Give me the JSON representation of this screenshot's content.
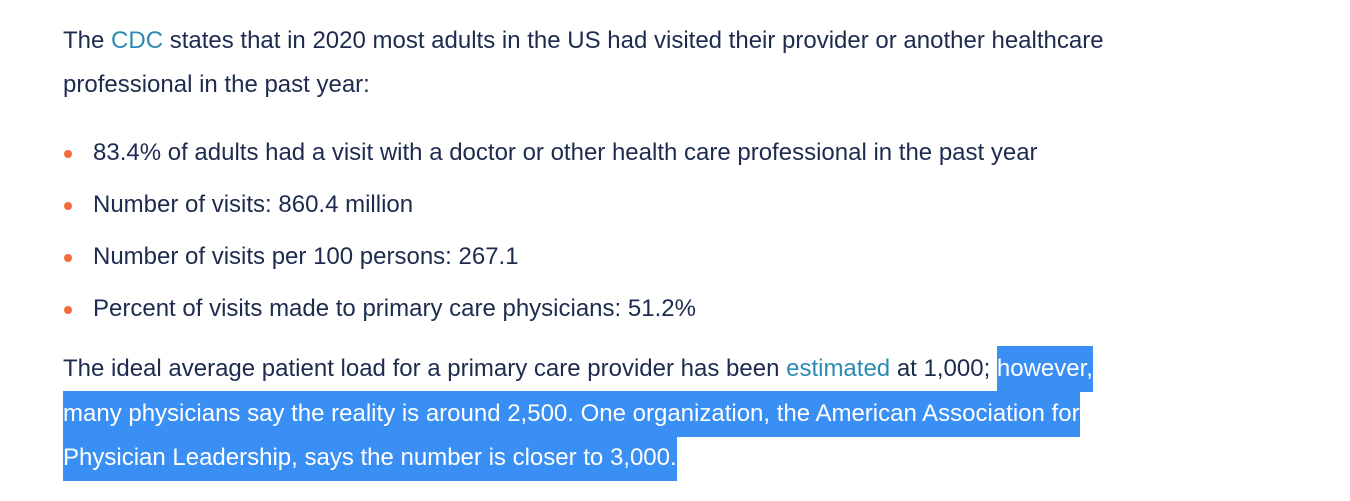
{
  "intro": {
    "lines": [
      {
        "before": "The ",
        "link": "CDC",
        "after": " states that in 2020 most adults in the US had visited their provider or another healthcare"
      },
      {
        "text": "professional in the past year:"
      }
    ]
  },
  "bullets": [
    "83.4% of adults had a visit with a doctor or other health care professional in the past year",
    "Number of visits: 860.4 million",
    "Number of visits per 100 persons: 267.1",
    "Percent of visits made to primary care physicians: 51.2%"
  ],
  "closing": {
    "lines": [
      {
        "before": "The ideal average patient load for a primary care provider has been ",
        "link": "estimated",
        "after": " at 1,000; ",
        "selected": "however,"
      },
      {
        "selected": "many physicians say the reality is around 2,500. One organization, the American Association for"
      },
      {
        "selected": "Physician Leadership, says the number is closer to 3,000."
      }
    ]
  }
}
